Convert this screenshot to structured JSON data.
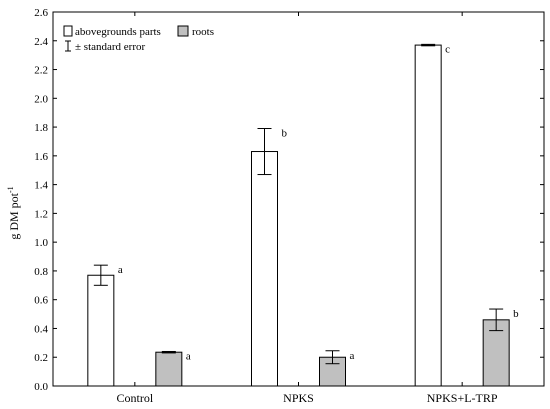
{
  "chart_data": {
    "type": "bar",
    "title": "",
    "xlabel": "",
    "ylabel": "g DM pot",
    "ylabel_superscript": "-1",
    "ylim": [
      0,
      2.6
    ],
    "yticks": [
      0,
      0.2,
      0.4,
      0.6,
      0.8,
      1.0,
      1.2,
      1.4,
      1.6,
      1.8,
      2.0,
      2.2,
      2.4,
      2.6
    ],
    "ytick_labels": [
      "0.0",
      "0.2",
      "0.4",
      "0.6",
      "0.8",
      "1.0",
      "1.2",
      "1.4",
      "1.6",
      "1.8",
      "2.0",
      "2.2",
      "2.4",
      "2.6"
    ],
    "categories": [
      "Control",
      "NPKS",
      "NPKS+L-TRP"
    ],
    "series": [
      {
        "name": "abovegrounds parts",
        "color": "#ffffff",
        "values": [
          0.77,
          1.63,
          2.37
        ],
        "errors": [
          0.07,
          0.16,
          0.005
        ],
        "labels": [
          "a",
          "b",
          "c"
        ]
      },
      {
        "name": "roots",
        "color": "#c0c0c0",
        "values": [
          0.235,
          0.2,
          0.46
        ],
        "errors": [
          0.005,
          0.045,
          0.075
        ],
        "labels": [
          "a",
          "a",
          "b"
        ]
      }
    ],
    "legend": {
      "placement": "top-left",
      "error_label": "± standard error"
    },
    "grid": false
  }
}
